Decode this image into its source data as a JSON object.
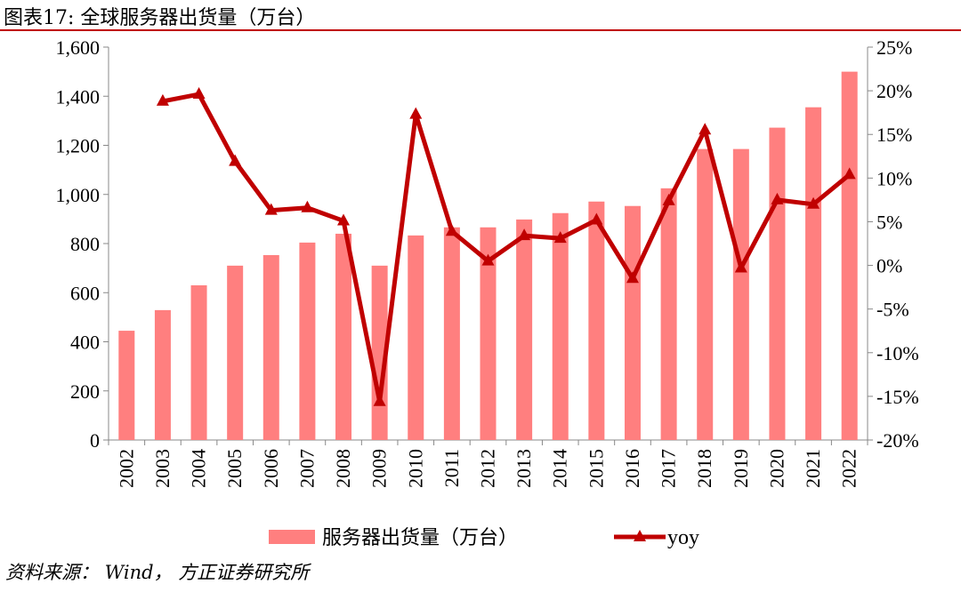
{
  "header": {
    "title": "图表17: 全球服务器出货量（万台）"
  },
  "footer": {
    "source": "资料来源： Wind， 方正证券研究所"
  },
  "chart_data": {
    "type": "bar+line",
    "title": "图表17: 全球服务器出货量（万台）",
    "categories": [
      "2002",
      "2003",
      "2004",
      "2005",
      "2006",
      "2007",
      "2008",
      "2009",
      "2010",
      "2011",
      "2012",
      "2013",
      "2014",
      "2015",
      "2016",
      "2017",
      "2018",
      "2019",
      "2020",
      "2021",
      "2022"
    ],
    "series": [
      {
        "name": "服务器出货量（万台）",
        "type": "bar",
        "axis": "left",
        "color": "#ff7f7f",
        "values": [
          445,
          529,
          630,
          710,
          753,
          804,
          840,
          710,
          833,
          866,
          866,
          898,
          924,
          971,
          953,
          1025,
          1185,
          1185,
          1272,
          1355,
          1500
        ]
      },
      {
        "name": "yoy",
        "type": "line",
        "axis": "right",
        "color": "#c00000",
        "values": [
          null,
          18.8,
          19.6,
          11.9,
          6.3,
          6.6,
          5.1,
          -15.6,
          17.3,
          3.9,
          0.5,
          3.4,
          3.1,
          5.2,
          -1.5,
          7.4,
          15.5,
          -0.3,
          7.5,
          7.0,
          10.4
        ]
      }
    ],
    "yleft": {
      "lim": [
        0,
        1600
      ],
      "ticks": [
        0,
        200,
        400,
        600,
        800,
        1000,
        1200,
        1400,
        1600
      ],
      "tick_labels": [
        "0",
        "200",
        "400",
        "600",
        "800",
        "1,000",
        "1,200",
        "1,400",
        "1,600"
      ]
    },
    "yright": {
      "lim": [
        -20,
        25
      ],
      "ticks": [
        -20,
        -15,
        -10,
        -5,
        0,
        5,
        10,
        15,
        20,
        25
      ],
      "tick_labels": [
        "-20%",
        "-15%",
        "-10%",
        "-5%",
        "0%",
        "5%",
        "10%",
        "15%",
        "20%",
        "25%"
      ]
    },
    "legend": {
      "placement": "bottom",
      "entries": [
        "服务器出货量（万台）",
        "yoy"
      ]
    },
    "grid": false
  }
}
